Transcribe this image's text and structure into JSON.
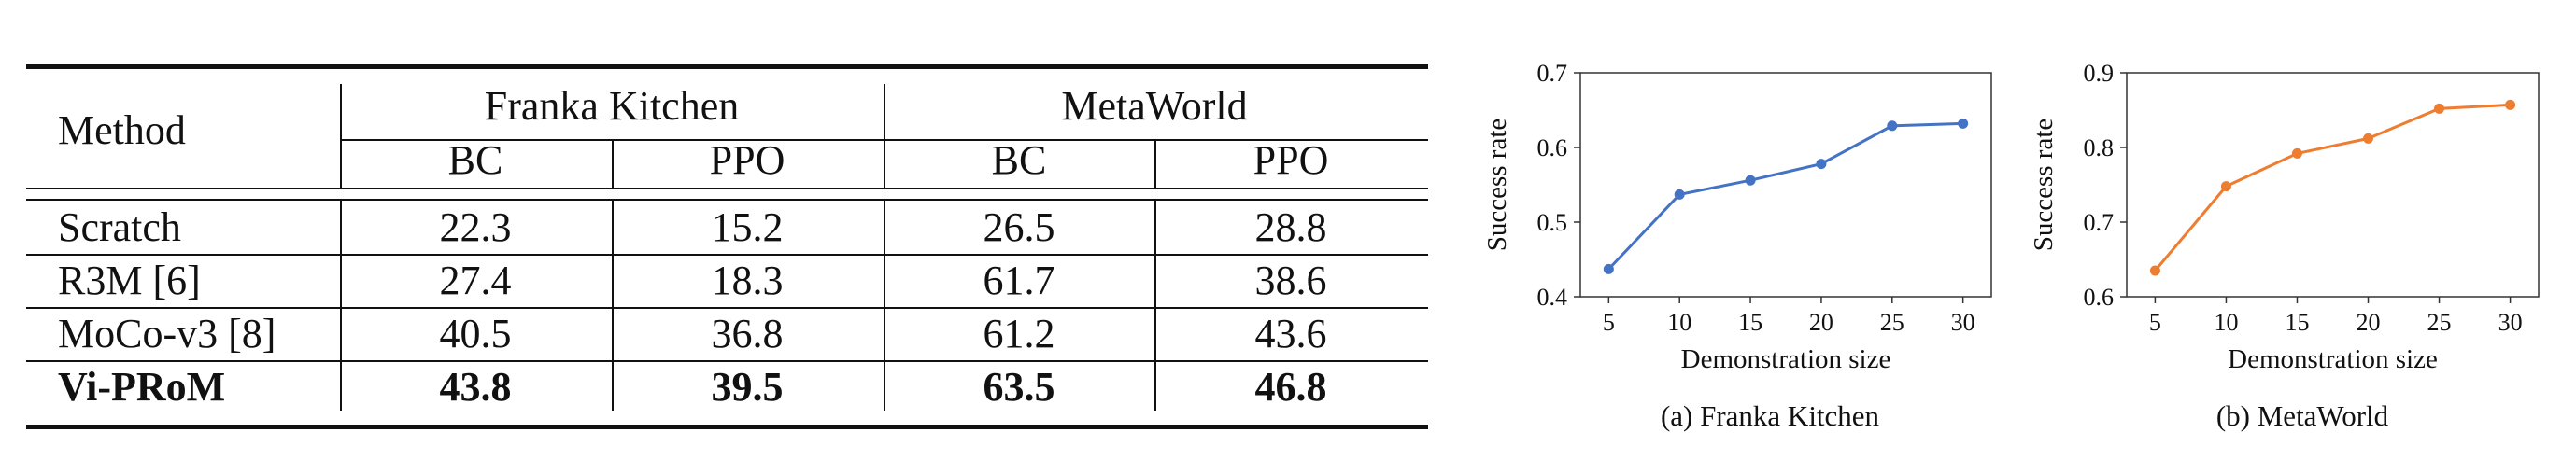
{
  "table": {
    "method_header": "Method",
    "groups": [
      {
        "name": "Franka Kitchen",
        "subcols": [
          "BC",
          "PPO"
        ]
      },
      {
        "name": "MetaWorld",
        "subcols": [
          "BC",
          "PPO"
        ]
      }
    ],
    "rows": [
      {
        "method": "Scratch",
        "values": [
          "22.3",
          "15.2",
          "26.5",
          "28.8"
        ],
        "bold": false
      },
      {
        "method": "R3M [6]",
        "values": [
          "27.4",
          "18.3",
          "61.7",
          "38.6"
        ],
        "bold": false
      },
      {
        "method": "MoCo-v3 [8]",
        "values": [
          "40.5",
          "36.8",
          "61.2",
          "43.6"
        ],
        "bold": false
      },
      {
        "method": "Vi-PRoM",
        "values": [
          "43.8",
          "39.5",
          "63.5",
          "46.8"
        ],
        "bold": true
      }
    ]
  },
  "chart_data": [
    {
      "type": "line",
      "caption": "(a) Franka Kitchen",
      "xlabel": "Demonstration size",
      "ylabel": "Success rate",
      "x": [
        5,
        10,
        15,
        20,
        25,
        30
      ],
      "series": [
        {
          "values": [
            0.437,
            0.537,
            0.556,
            0.578,
            0.629,
            0.632
          ],
          "color": "#4472C4"
        }
      ],
      "ylim": [
        0.4,
        0.7
      ],
      "yticks": [
        "0.4",
        "0.5",
        "0.6",
        "0.7"
      ],
      "xticks": [
        "5",
        "10",
        "15",
        "20",
        "25",
        "30"
      ],
      "grid": false
    },
    {
      "type": "line",
      "caption": "(b) MetaWorld",
      "xlabel": "Demonstration size",
      "ylabel": "Success rate",
      "x": [
        5,
        10,
        15,
        20,
        25,
        30
      ],
      "series": [
        {
          "values": [
            0.635,
            0.748,
            0.792,
            0.812,
            0.852,
            0.857
          ],
          "color": "#ED7D31"
        }
      ],
      "ylim": [
        0.6,
        0.9
      ],
      "yticks": [
        "0.6",
        "0.7",
        "0.8",
        "0.9"
      ],
      "xticks": [
        "5",
        "10",
        "15",
        "20",
        "25",
        "30"
      ],
      "grid": false
    }
  ]
}
